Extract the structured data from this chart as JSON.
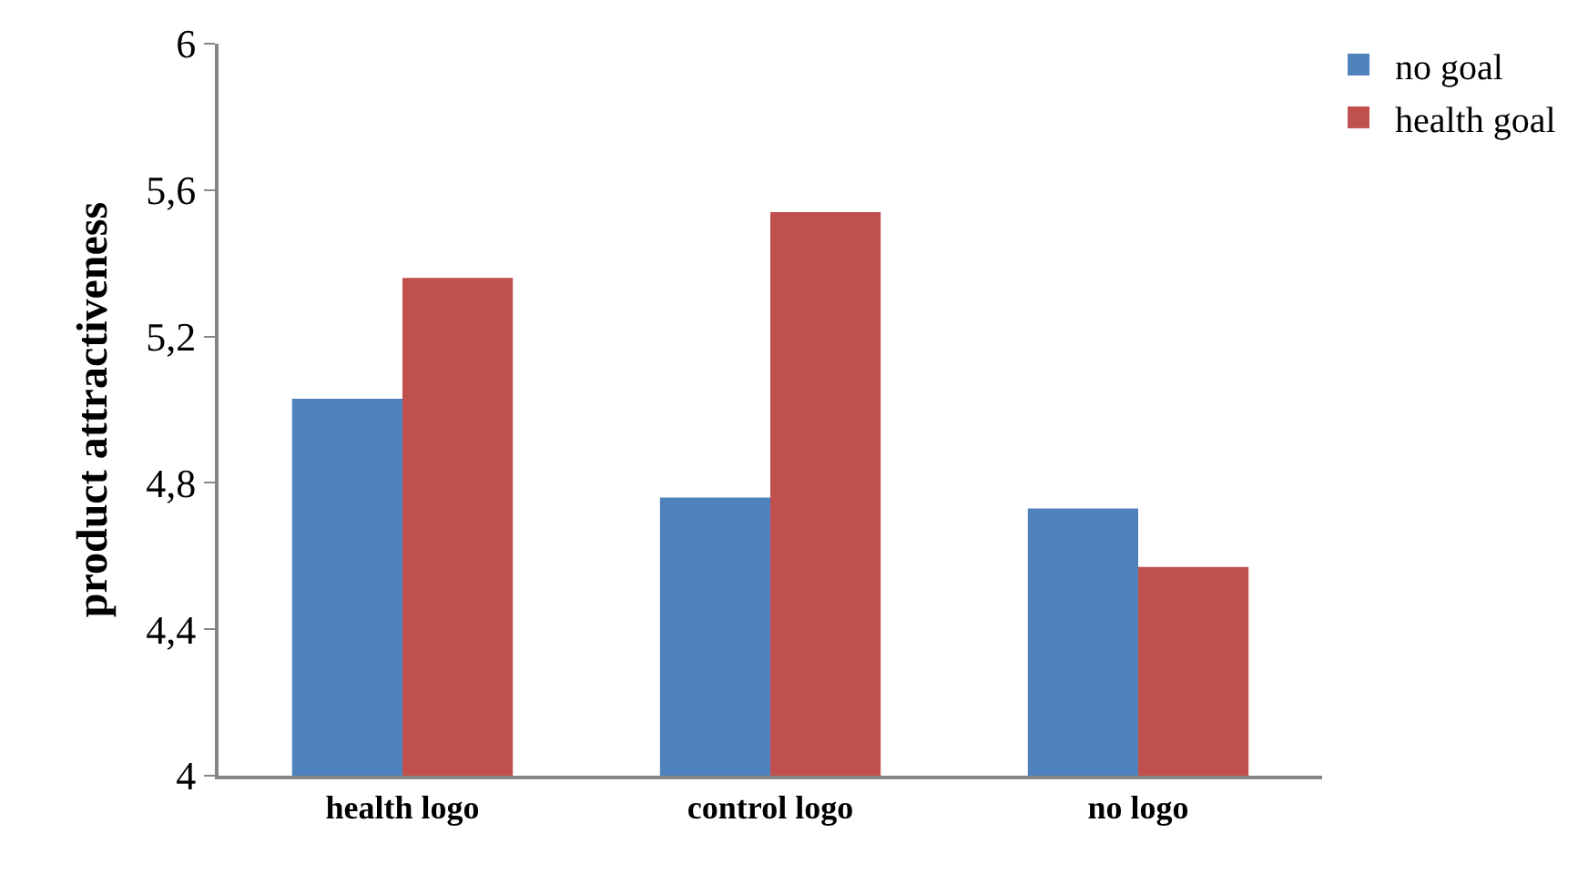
{
  "chart_data": {
    "type": "bar",
    "ylabel": "product attractiveness",
    "categories": [
      "health logo",
      "control logo",
      "no logo"
    ],
    "series": [
      {
        "name": "no goal",
        "color": "#4f81bd",
        "values": [
          5.03,
          4.76,
          4.73
        ]
      },
      {
        "name": "health goal",
        "color": "#c0504d",
        "values": [
          5.36,
          5.54,
          4.57
        ]
      }
    ],
    "ylim": [
      4,
      6
    ],
    "yticks": [
      4,
      {
        "value": 4.4,
        "label": "4,4"
      },
      {
        "value": 4.8,
        "label": "4,8"
      },
      {
        "value": 5.2,
        "label": "5,2"
      },
      {
        "value": 5.6,
        "label": "5,6"
      },
      6
    ],
    "legend": "top right"
  }
}
